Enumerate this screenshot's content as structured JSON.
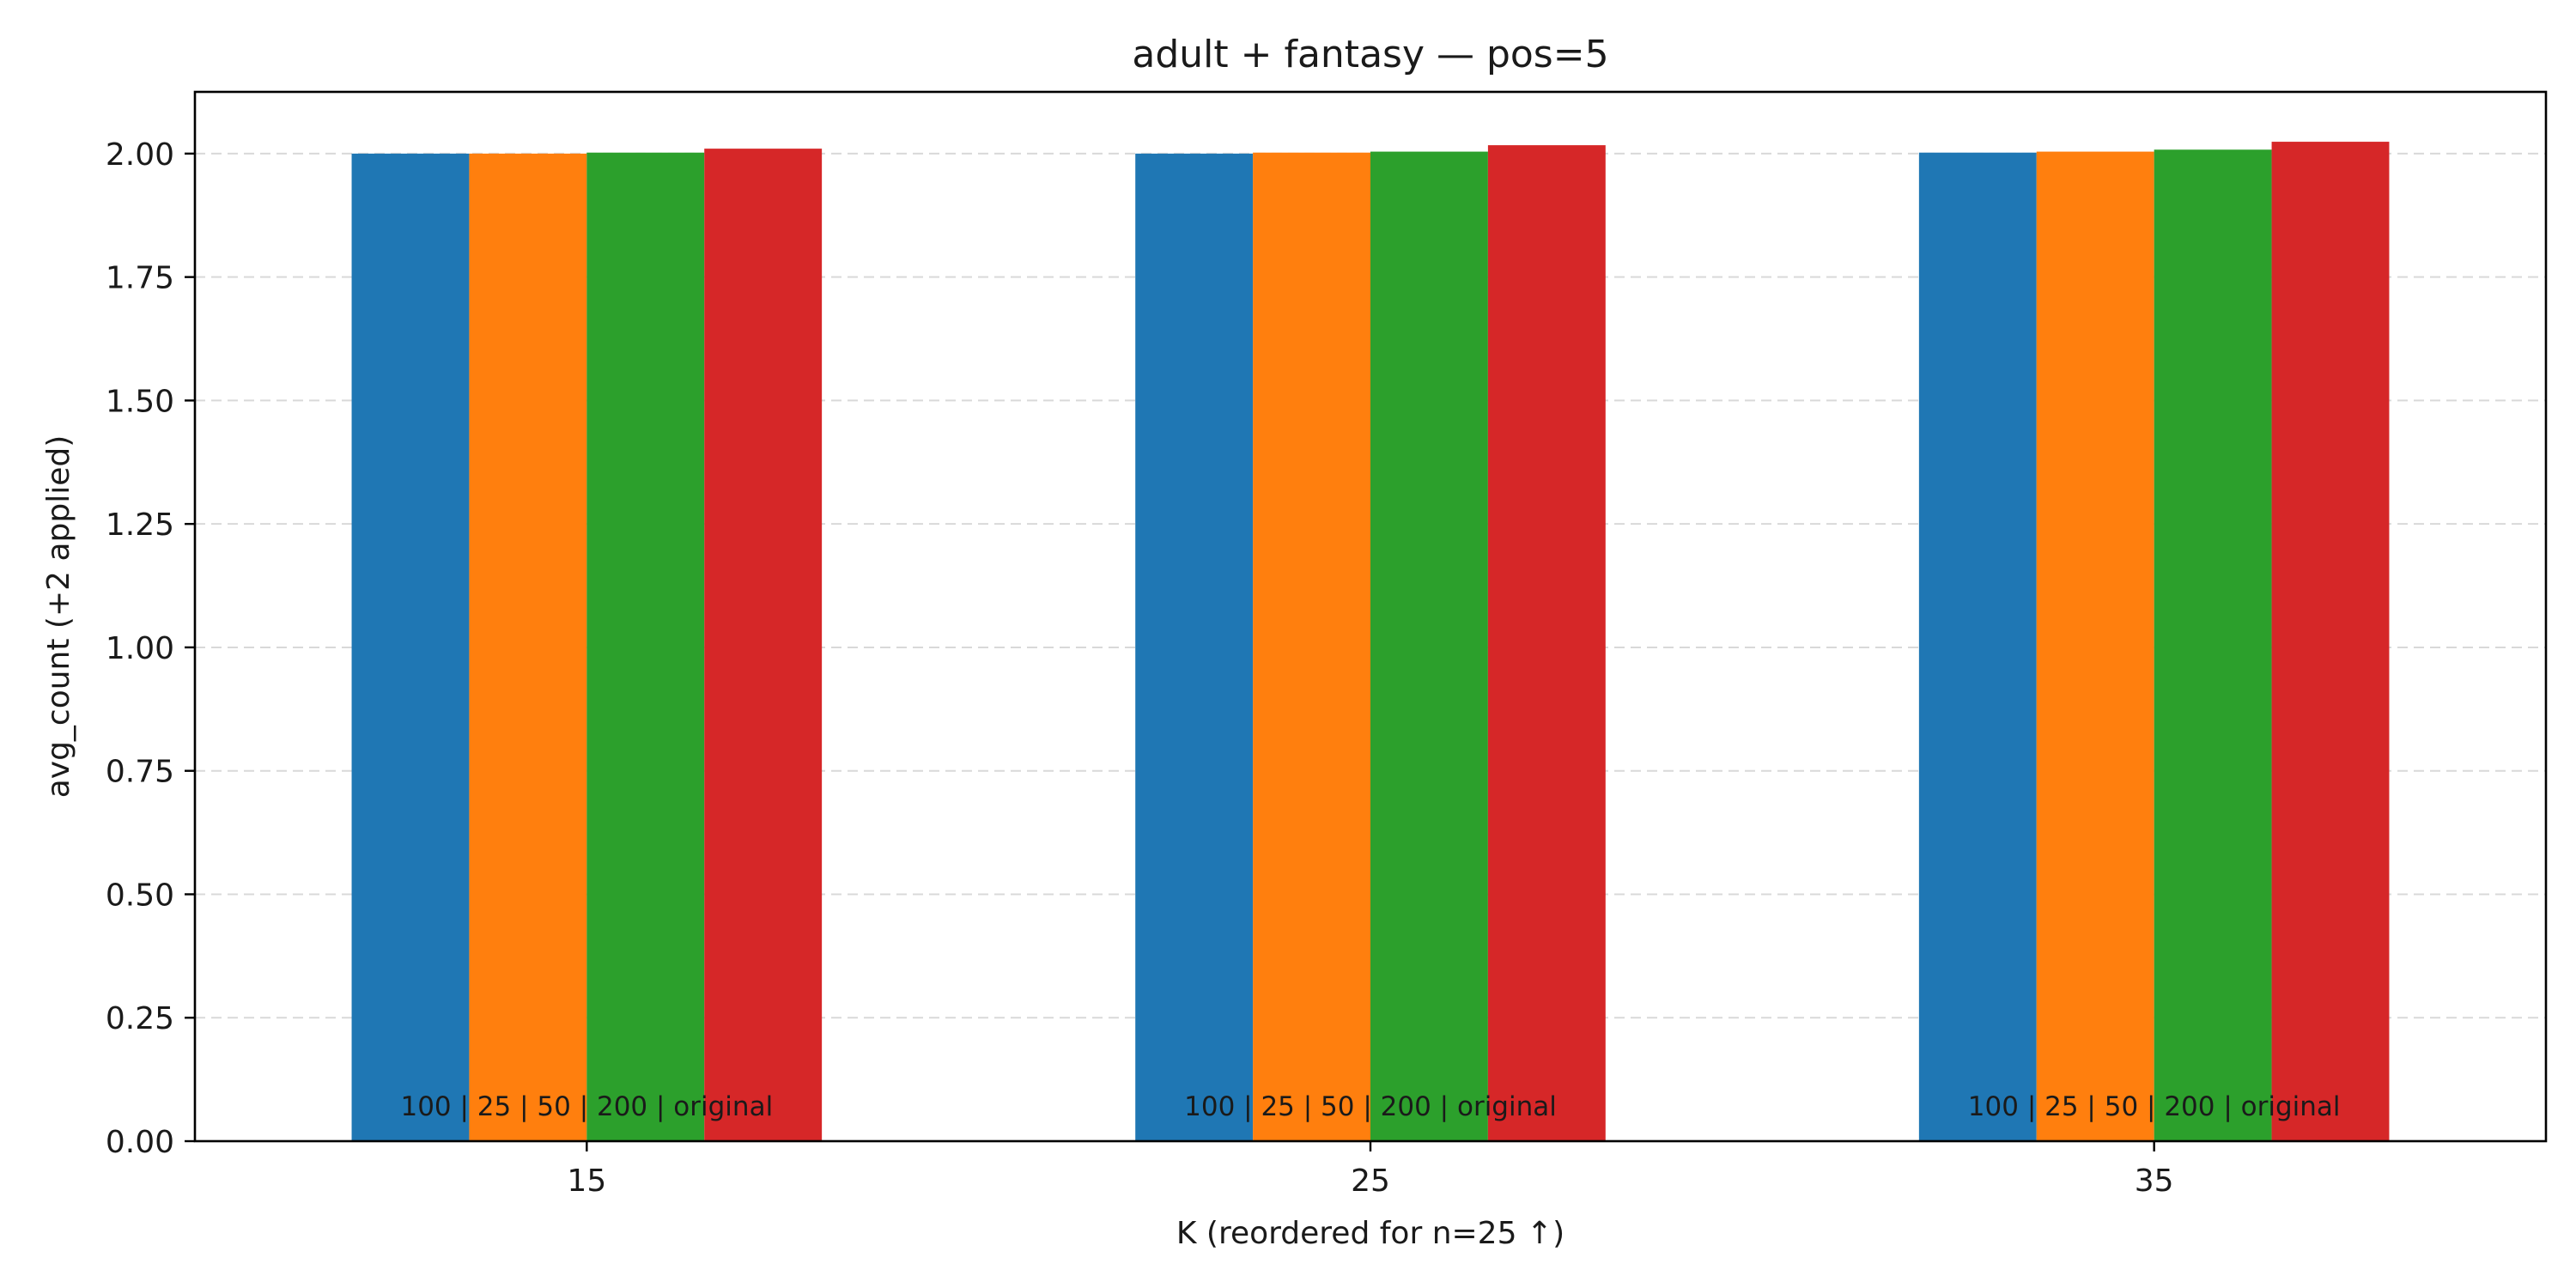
{
  "chart_data": {
    "type": "bar",
    "title": "adult + fantasy — pos=5",
    "xlabel": "K (reordered for n=25 ↑)",
    "ylabel": "avg_count (+2 applied)",
    "categories": [
      "15",
      "25",
      "35"
    ],
    "ylim": [
      0,
      2.125
    ],
    "yticks": [
      0.0,
      0.25,
      0.5,
      0.75,
      1.0,
      1.25,
      1.5,
      1.75,
      2.0
    ],
    "ytick_labels": [
      "0.00",
      "0.25",
      "0.50",
      "0.75",
      "1.00",
      "1.25",
      "1.50",
      "1.75",
      "2.00"
    ],
    "grid": "y-dashed",
    "series": [
      {
        "color": "#1f77b4",
        "values": [
          2.0,
          2.0,
          2.002
        ]
      },
      {
        "color": "#ff7f0e",
        "values": [
          2.0,
          2.002,
          2.004
        ]
      },
      {
        "color": "#2ca02c",
        "values": [
          2.002,
          2.004,
          2.008
        ]
      },
      {
        "color": "#d62728",
        "values": [
          2.01,
          2.017,
          2.024
        ]
      }
    ],
    "annotations": [
      "100 | 25 | 50 | 200 | original",
      "100 | 25 | 50 | 200 | original",
      "100 | 25 | 50 | 200 | original"
    ]
  }
}
